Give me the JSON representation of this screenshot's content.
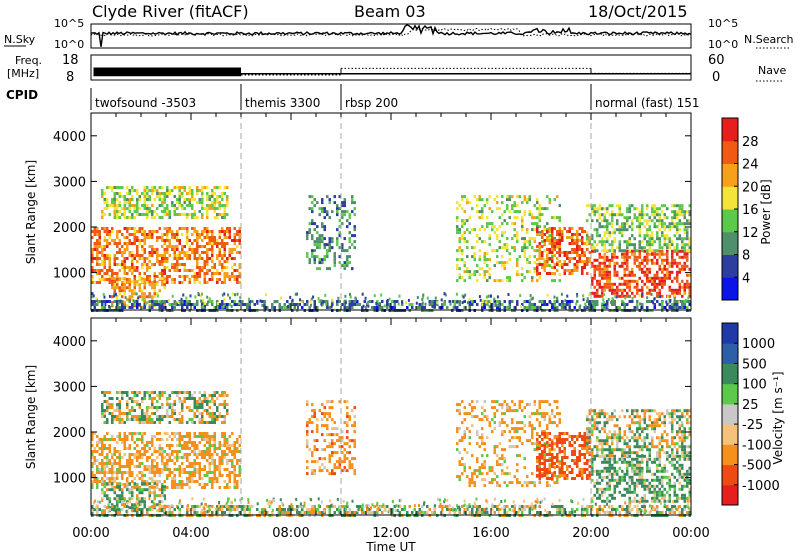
{
  "header": {
    "title": "Clyde River (fitACF)",
    "beam": "Beam 03",
    "date": "18/Oct/2015"
  },
  "top_panels": {
    "nsky_label": "N.Sky",
    "nsky_ticks": [
      "10^5",
      "10^0"
    ],
    "nsearch_label": "N.Search",
    "nsearch_ticks": [
      "10^5",
      "10^0"
    ],
    "freq_label": "Freq.",
    "freq_unit": "[MHz]",
    "freq_ticks": [
      "18",
      "8"
    ],
    "nave_label": "Nave",
    "nave_ticks": [
      "60",
      "0"
    ],
    "cpid_label": "CPID",
    "cpid_segments": [
      {
        "label": "twofsound -3503",
        "start_h": 0,
        "end_h": 6
      },
      {
        "label": "themis 3300",
        "start_h": 6,
        "end_h": 10
      },
      {
        "label": "rbsp 200",
        "start_h": 10,
        "end_h": 20
      },
      {
        "label": "normal (fast) 151",
        "start_h": 20,
        "end_h": 24
      }
    ],
    "freq_segments": [
      {
        "start_h": 0.1,
        "end_h": 6,
        "mhz": 10.5
      },
      {
        "start_h": 6,
        "end_h": 10,
        "mhz": 10.5
      },
      {
        "start_h": 10,
        "end_h": 20,
        "mhz": 10.5
      },
      {
        "start_h": 20,
        "end_h": 24,
        "mhz": 10.5
      }
    ],
    "nave_segments": [
      {
        "start_h": 0.1,
        "end_h": 6,
        "nave": 18
      },
      {
        "start_h": 6,
        "end_h": 10,
        "nave": 12
      },
      {
        "start_h": 10,
        "end_h": 20,
        "nave": 28
      },
      {
        "start_h": 20,
        "end_h": 24,
        "nave": 16
      }
    ]
  },
  "chart_data": [
    {
      "type": "heatmap",
      "title": "",
      "quantity": "Power",
      "ylabel": "Slant Range [km]",
      "xlabel": "Time UT",
      "xlim": [
        0,
        24
      ],
      "ylim": [
        180,
        4500
      ],
      "yticks": [
        1000,
        2000,
        3000,
        4000
      ],
      "xticks": [
        "00:00",
        "04:00",
        "08:00",
        "12:00",
        "16:00",
        "20:00",
        "00:00"
      ],
      "colorbar": {
        "label": "Power [dB]",
        "ticks": [
          4,
          8,
          12,
          16,
          20,
          24,
          28
        ],
        "colors": [
          "#0a14e6",
          "#2d3f9e",
          "#4f8f6a",
          "#5cc94a",
          "#f4e43a",
          "#f6a11c",
          "#f05a14",
          "#e61e1e"
        ]
      },
      "features": [
        {
          "start_h": 0.0,
          "end_h": 6.0,
          "range_low_km": 800,
          "range_high_km": 2000,
          "typical_power_db": 24
        },
        {
          "start_h": 0.8,
          "end_h": 3.0,
          "range_low_km": 250,
          "range_high_km": 900,
          "typical_power_db": 22
        },
        {
          "start_h": 0.4,
          "end_h": 5.5,
          "range_low_km": 2200,
          "range_high_km": 2900,
          "typical_power_db": 16
        },
        {
          "start_h": 8.6,
          "end_h": 10.6,
          "range_low_km": 1100,
          "range_high_km": 2700,
          "typical_power_db": 10
        },
        {
          "start_h": 14.6,
          "end_h": 18.8,
          "range_low_km": 800,
          "range_high_km": 2700,
          "typical_power_db": 16
        },
        {
          "start_h": 17.8,
          "end_h": 20.0,
          "range_low_km": 1000,
          "range_high_km": 2000,
          "typical_power_db": 26
        },
        {
          "start_h": 20.0,
          "end_h": 24.0,
          "range_low_km": 500,
          "range_high_km": 1500,
          "typical_power_db": 28
        },
        {
          "start_h": 19.8,
          "end_h": 24.0,
          "range_low_km": 1500,
          "range_high_km": 2500,
          "typical_power_db": 14
        },
        {
          "start_h": 0.0,
          "end_h": 24.0,
          "range_low_km": 180,
          "range_high_km": 400,
          "typical_power_db": 8
        }
      ]
    },
    {
      "type": "heatmap",
      "title": "",
      "quantity": "Velocity",
      "ylabel": "Slant Range [km]",
      "xlabel": "Time UT",
      "xlim": [
        0,
        24
      ],
      "ylim": [
        180,
        4500
      ],
      "yticks": [
        1000,
        2000,
        3000,
        4000
      ],
      "xticks": [
        "00:00",
        "04:00",
        "08:00",
        "12:00",
        "16:00",
        "20:00",
        "00:00"
      ],
      "colorbar": {
        "label": "Velocity [m s⁻¹]",
        "ticks": [
          "1000",
          "500",
          "100",
          "25",
          "-25",
          "-100",
          "-500",
          "-1000"
        ],
        "colors": [
          "#1f3aa8",
          "#2c5fa8",
          "#3a8a5c",
          "#5cc94a",
          "#c8c8c8",
          "#f4c27a",
          "#f6901c",
          "#f04a14",
          "#e61e1e"
        ]
      },
      "features": [
        {
          "start_h": 0.0,
          "end_h": 6.0,
          "range_low_km": 800,
          "range_high_km": 2000,
          "typical_velocity": -200
        },
        {
          "start_h": 0.4,
          "end_h": 3.0,
          "range_low_km": 250,
          "range_high_km": 900,
          "typical_velocity": 100
        },
        {
          "start_h": 0.4,
          "end_h": 5.5,
          "range_low_km": 2200,
          "range_high_km": 2900,
          "typical_velocity": 0
        },
        {
          "start_h": 8.6,
          "end_h": 10.6,
          "range_low_km": 1100,
          "range_high_km": 2700,
          "typical_velocity": -300
        },
        {
          "start_h": 14.6,
          "end_h": 18.8,
          "range_low_km": 800,
          "range_high_km": 2700,
          "typical_velocity": -200
        },
        {
          "start_h": 17.8,
          "end_h": 20.0,
          "range_low_km": 1000,
          "range_high_km": 2000,
          "typical_velocity": -700
        },
        {
          "start_h": 20.0,
          "end_h": 24.0,
          "range_low_km": 500,
          "range_high_km": 1500,
          "typical_velocity": 200
        },
        {
          "start_h": 19.8,
          "end_h": 24.0,
          "range_low_km": 1500,
          "range_high_km": 2500,
          "typical_velocity": 0
        },
        {
          "start_h": 0.0,
          "end_h": 24.0,
          "range_low_km": 180,
          "range_high_km": 400,
          "typical_velocity": 50
        }
      ]
    }
  ]
}
